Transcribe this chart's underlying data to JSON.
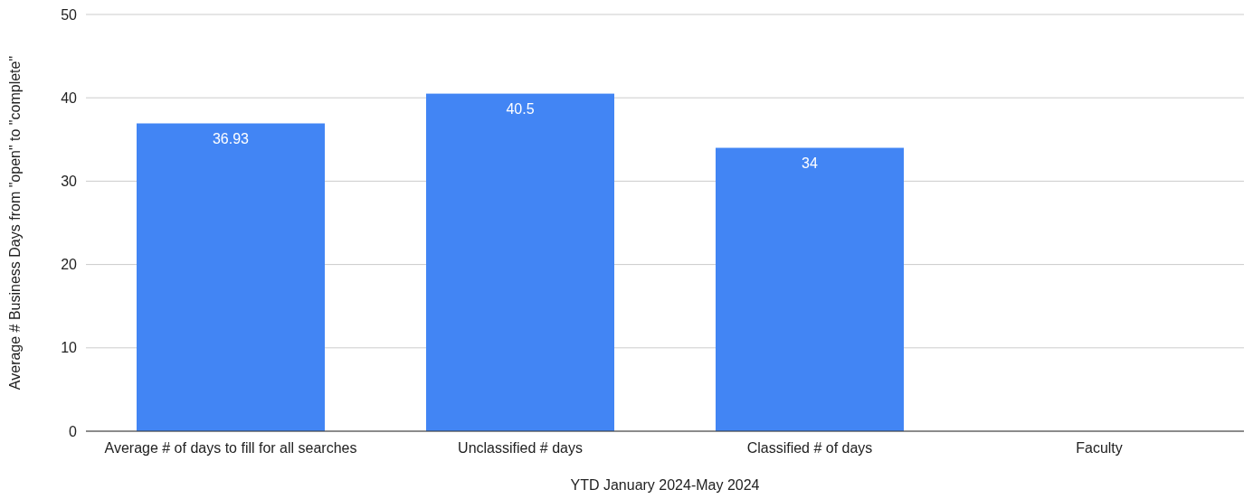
{
  "chart_data": {
    "type": "bar",
    "xlabel": "YTD January 2024-May 2024",
    "ylabel": "Average # Business Days from \"open\" to \"complete\"",
    "categories": [
      "Average # of days to fill for all searches",
      "Unclassified # days",
      "Classified # of days",
      "Faculty"
    ],
    "values": [
      36.93,
      40.5,
      34,
      null
    ],
    "color": "#4285f4",
    "ylim": [
      0,
      50
    ],
    "yticks": [
      0,
      10,
      20,
      30,
      40,
      50
    ],
    "grid": "y",
    "data_labels": true
  }
}
